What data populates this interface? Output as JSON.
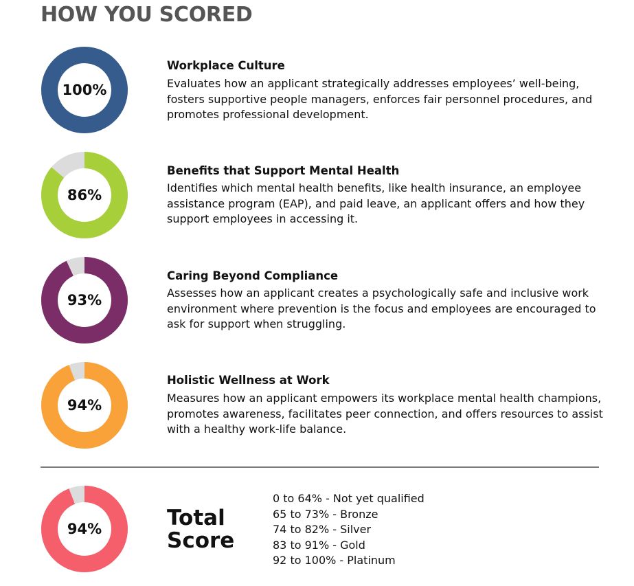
{
  "page_title": "HOW YOU SCORED",
  "categories": [
    {
      "title": "Workplace Culture",
      "description": "Evaluates how an applicant strategically addresses employees’ well-being, fosters supportive people managers, enforces fair personnel procedures, and promotes professional development.",
      "score_label": "100%",
      "score_fraction": 1.0,
      "color": "#355c8c"
    },
    {
      "title": "Benefits that Support Mental Health",
      "description": "Identifies which mental health benefits, like health insurance, an employee assistance program (EAP), and paid leave, an applicant offers and how they support employees in accessing it.",
      "score_label": "86%",
      "score_fraction": 0.86,
      "color": "#a6cf3a"
    },
    {
      "title": "Caring Beyond Compliance",
      "description": "Assesses how an applicant creates a psychologically safe and inclusive work environment where prevention is the focus and employees are encouraged to ask for support when struggling.",
      "score_label": "93%",
      "score_fraction": 0.93,
      "color": "#7b2d67"
    },
    {
      "title": "Holistic Wellness at Work",
      "description": "Measures how an applicant empowers its workplace mental health champions, promotes awareness, facilitates peer connection, and offers resources to assist with a healthy work-life balance.",
      "score_label": "94%",
      "score_fraction": 0.94,
      "color": "#f9a23a"
    }
  ],
  "total": {
    "label_line1": "Total",
    "label_line2": "Score",
    "score_label": "94%",
    "score_fraction": 0.94,
    "color": "#f45f6b"
  },
  "tiers": [
    "0 to 64% - Not yet qualified",
    "65 to 73% - Bronze",
    "74 to 82% - Silver",
    "83 to 91% - Gold",
    "92 to 100% - Platinum"
  ],
  "remainder_color": "#dcdcdc"
}
